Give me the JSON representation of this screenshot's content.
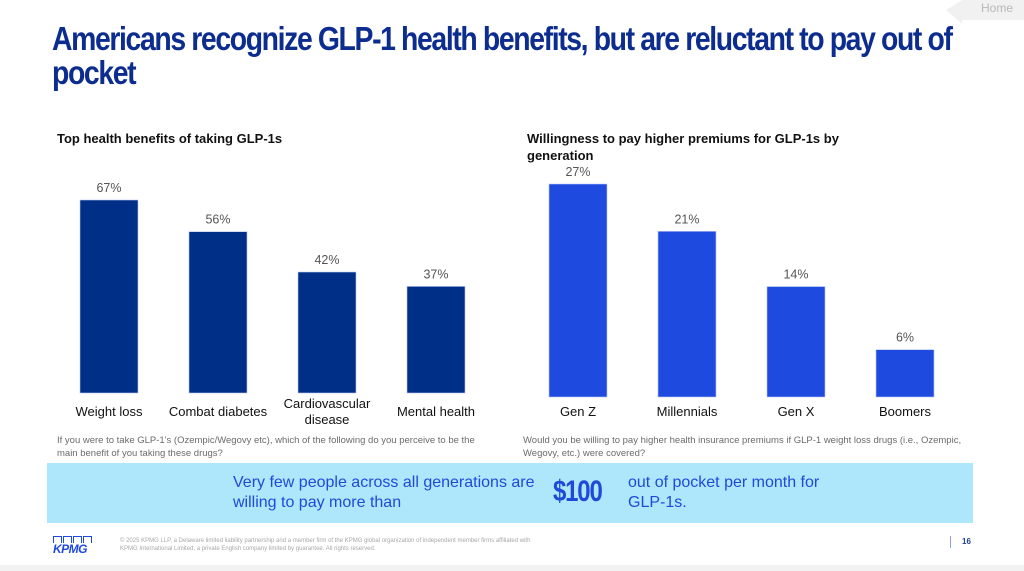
{
  "nav": {
    "home_label": "Home"
  },
  "slide": {
    "title": "Americans recognize GLP-1 health benefits, but are reluctant to pay out of pocket",
    "page_number": "16",
    "footer": {
      "logo_text": "KPMG",
      "legal": "© 2025 KPMG LLP, a Delaware limited liability partnership and a member firm of the KPMG global organization of independent member firms affiliated with KPMG International Limited, a private English company limited by guarantee. All rights reserved."
    },
    "callout": {
      "left_text": "Very few people across all generations are willing to pay more than",
      "amount": "$100",
      "right_text": "out of pocket per month for GLP-1s."
    }
  },
  "colors": {
    "title": "#0c2d8f",
    "chart1_bar": "#002f87",
    "chart2_bar": "#1f4ae0",
    "banner_bg": "#aee6fb",
    "banner_text": "#1f4ad9"
  },
  "chart_data": [
    {
      "type": "bar",
      "title": "Top health benefits of taking GLP-1s",
      "categories": [
        "Weight loss",
        "Combat diabetes",
        "Cardiovascular disease",
        "Mental health"
      ],
      "category_lines": [
        [
          "Weight loss"
        ],
        [
          "Combat diabetes"
        ],
        [
          "Cardiovascular",
          "disease"
        ],
        [
          "Mental health"
        ]
      ],
      "values": [
        67,
        56,
        42,
        37
      ],
      "data_labels": [
        "67%",
        "56%",
        "42%",
        "37%"
      ],
      "ylim": [
        0,
        67
      ],
      "unit": "%",
      "grid": false,
      "question": "If you were to take GLP-1's (Ozempic/Wegovy etc), which of the following do you perceive to be the main benefit of you taking these drugs?"
    },
    {
      "type": "bar",
      "title": "Willingness to pay higher premiums for GLP-1s by generation",
      "categories": [
        "Gen Z",
        "Millennials",
        "Gen X",
        "Boomers"
      ],
      "category_lines": [
        [
          "Gen Z"
        ],
        [
          "Millennials"
        ],
        [
          "Gen X"
        ],
        [
          "Boomers"
        ]
      ],
      "values": [
        27,
        21,
        14,
        6
      ],
      "data_labels": [
        "27%",
        "21%",
        "14%",
        "6%"
      ],
      "ylim": [
        0,
        27
      ],
      "unit": "%",
      "grid": false,
      "question": "Would you be willing to pay higher health insurance premiums if GLP-1 weight loss drugs (i.e., Ozempic, Wegovy, etc.) were covered?"
    }
  ]
}
